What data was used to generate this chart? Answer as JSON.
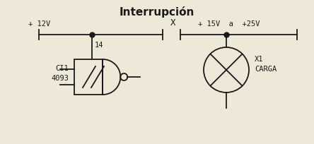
{
  "title": "Interrupción",
  "title_fontsize": 11,
  "bg_color": "#ede8d8",
  "line_color": "#1a1a1a",
  "label_12v": "+ 12V",
  "label_15v": "+ 15V  a  +25V",
  "label_x": "X",
  "label_ci": "CI1\n4093",
  "label_14": "14",
  "label_carga": "X1\nCARGA",
  "fig_width": 4.44,
  "fig_height": 2.04,
  "dpi": 100
}
